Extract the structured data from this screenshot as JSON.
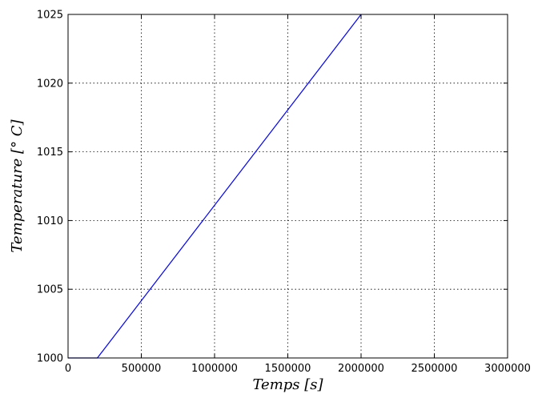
{
  "chart_data": {
    "type": "line",
    "title": "",
    "xlabel": "Temps [s]",
    "ylabel": "Temperature [° C]",
    "xlim": [
      0,
      3000000
    ],
    "ylim": [
      1000,
      1025
    ],
    "xticks": [
      0,
      500000,
      1000000,
      1500000,
      2000000,
      2500000,
      3000000
    ],
    "yticks": [
      1000,
      1005,
      1010,
      1015,
      1020,
      1025
    ],
    "xtick_labels": [
      "0",
      "500000",
      "1000000",
      "1500000",
      "2000000",
      "2500000",
      "3000000"
    ],
    "ytick_labels": [
      "1000",
      "1005",
      "1010",
      "1015",
      "1020",
      "1025"
    ],
    "grid": true,
    "legend": "none",
    "series": [
      {
        "color": "#0000ff",
        "x": [
          0,
          200000,
          2000000
        ],
        "y": [
          1000,
          1000,
          1025
        ]
      }
    ]
  }
}
